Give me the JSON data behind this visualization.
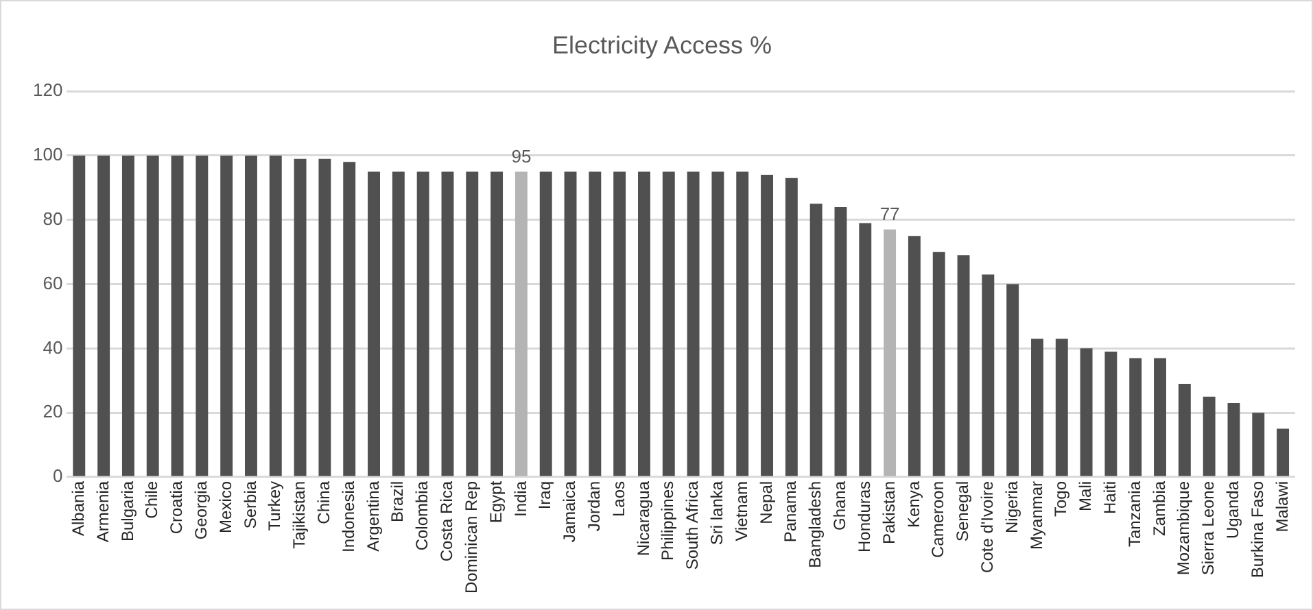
{
  "chart_data": {
    "type": "bar",
    "title": "Electricity Access %",
    "categories": [
      "Albania",
      "Armenia",
      "Bulgaria",
      "Chile",
      "Croatia",
      "Georgia",
      "Mexico",
      "Serbia",
      "Turkey",
      "Tajikistan",
      "China",
      "Indonesia",
      "Argentina",
      "Brazil",
      "Colombia",
      "Costa Rica",
      "Dominican Rep",
      "Egypt",
      "India",
      "Iraq",
      "Jamaica",
      "Jordan",
      "Laos",
      "Nicaragua",
      "Philippines",
      "South Africa",
      "Sri lanka",
      "Vietnam",
      "Nepal",
      "Panama",
      "Bangladesh",
      "Ghana",
      "Honduras",
      "Pakistan",
      "Kenya",
      "Cameroon",
      "Senegal",
      "Cote d'Ivoire",
      "Nigeria",
      "Myanmar",
      "Togo",
      "Mali",
      "Haiti",
      "Tanzania",
      "Zambia",
      "Mozambique",
      "Sierra Leone",
      "Uganda",
      "Burkina Faso",
      "Malawi"
    ],
    "values": [
      100,
      100,
      100,
      100,
      100,
      100,
      100,
      100,
      100,
      99,
      99,
      98,
      95,
      95,
      95,
      95,
      95,
      95,
      95,
      95,
      95,
      95,
      95,
      95,
      95,
      95,
      95,
      95,
      94,
      93,
      85,
      84,
      79,
      77,
      75,
      70,
      69,
      63,
      60,
      43,
      43,
      40,
      39,
      37,
      37,
      29,
      25,
      23,
      20,
      15
    ],
    "value_labels": [
      null,
      null,
      null,
      null,
      null,
      null,
      null,
      null,
      null,
      null,
      null,
      null,
      null,
      null,
      null,
      null,
      null,
      null,
      "95",
      null,
      null,
      null,
      null,
      null,
      null,
      null,
      null,
      null,
      null,
      null,
      null,
      null,
      null,
      "77",
      null,
      null,
      null,
      null,
      null,
      null,
      null,
      null,
      null,
      null,
      null,
      null,
      null,
      null,
      null,
      null
    ],
    "colors": [
      "#505050",
      "#505050",
      "#505050",
      "#505050",
      "#505050",
      "#505050",
      "#505050",
      "#505050",
      "#505050",
      "#505050",
      "#505050",
      "#505050",
      "#505050",
      "#505050",
      "#505050",
      "#505050",
      "#505050",
      "#505050",
      "#b4b4b4",
      "#505050",
      "#505050",
      "#505050",
      "#505050",
      "#505050",
      "#505050",
      "#505050",
      "#505050",
      "#505050",
      "#505050",
      "#505050",
      "#505050",
      "#505050",
      "#505050",
      "#b4b4b4",
      "#505050",
      "#505050",
      "#505050",
      "#505050",
      "#505050",
      "#505050",
      "#505050",
      "#505050",
      "#505050",
      "#505050",
      "#505050",
      "#505050",
      "#505050",
      "#505050",
      "#505050",
      "#505050"
    ],
    "ylim": [
      0,
      120
    ],
    "yticks": [
      0,
      20,
      40,
      60,
      80,
      100,
      120
    ],
    "grid": "y",
    "legend": false
  }
}
